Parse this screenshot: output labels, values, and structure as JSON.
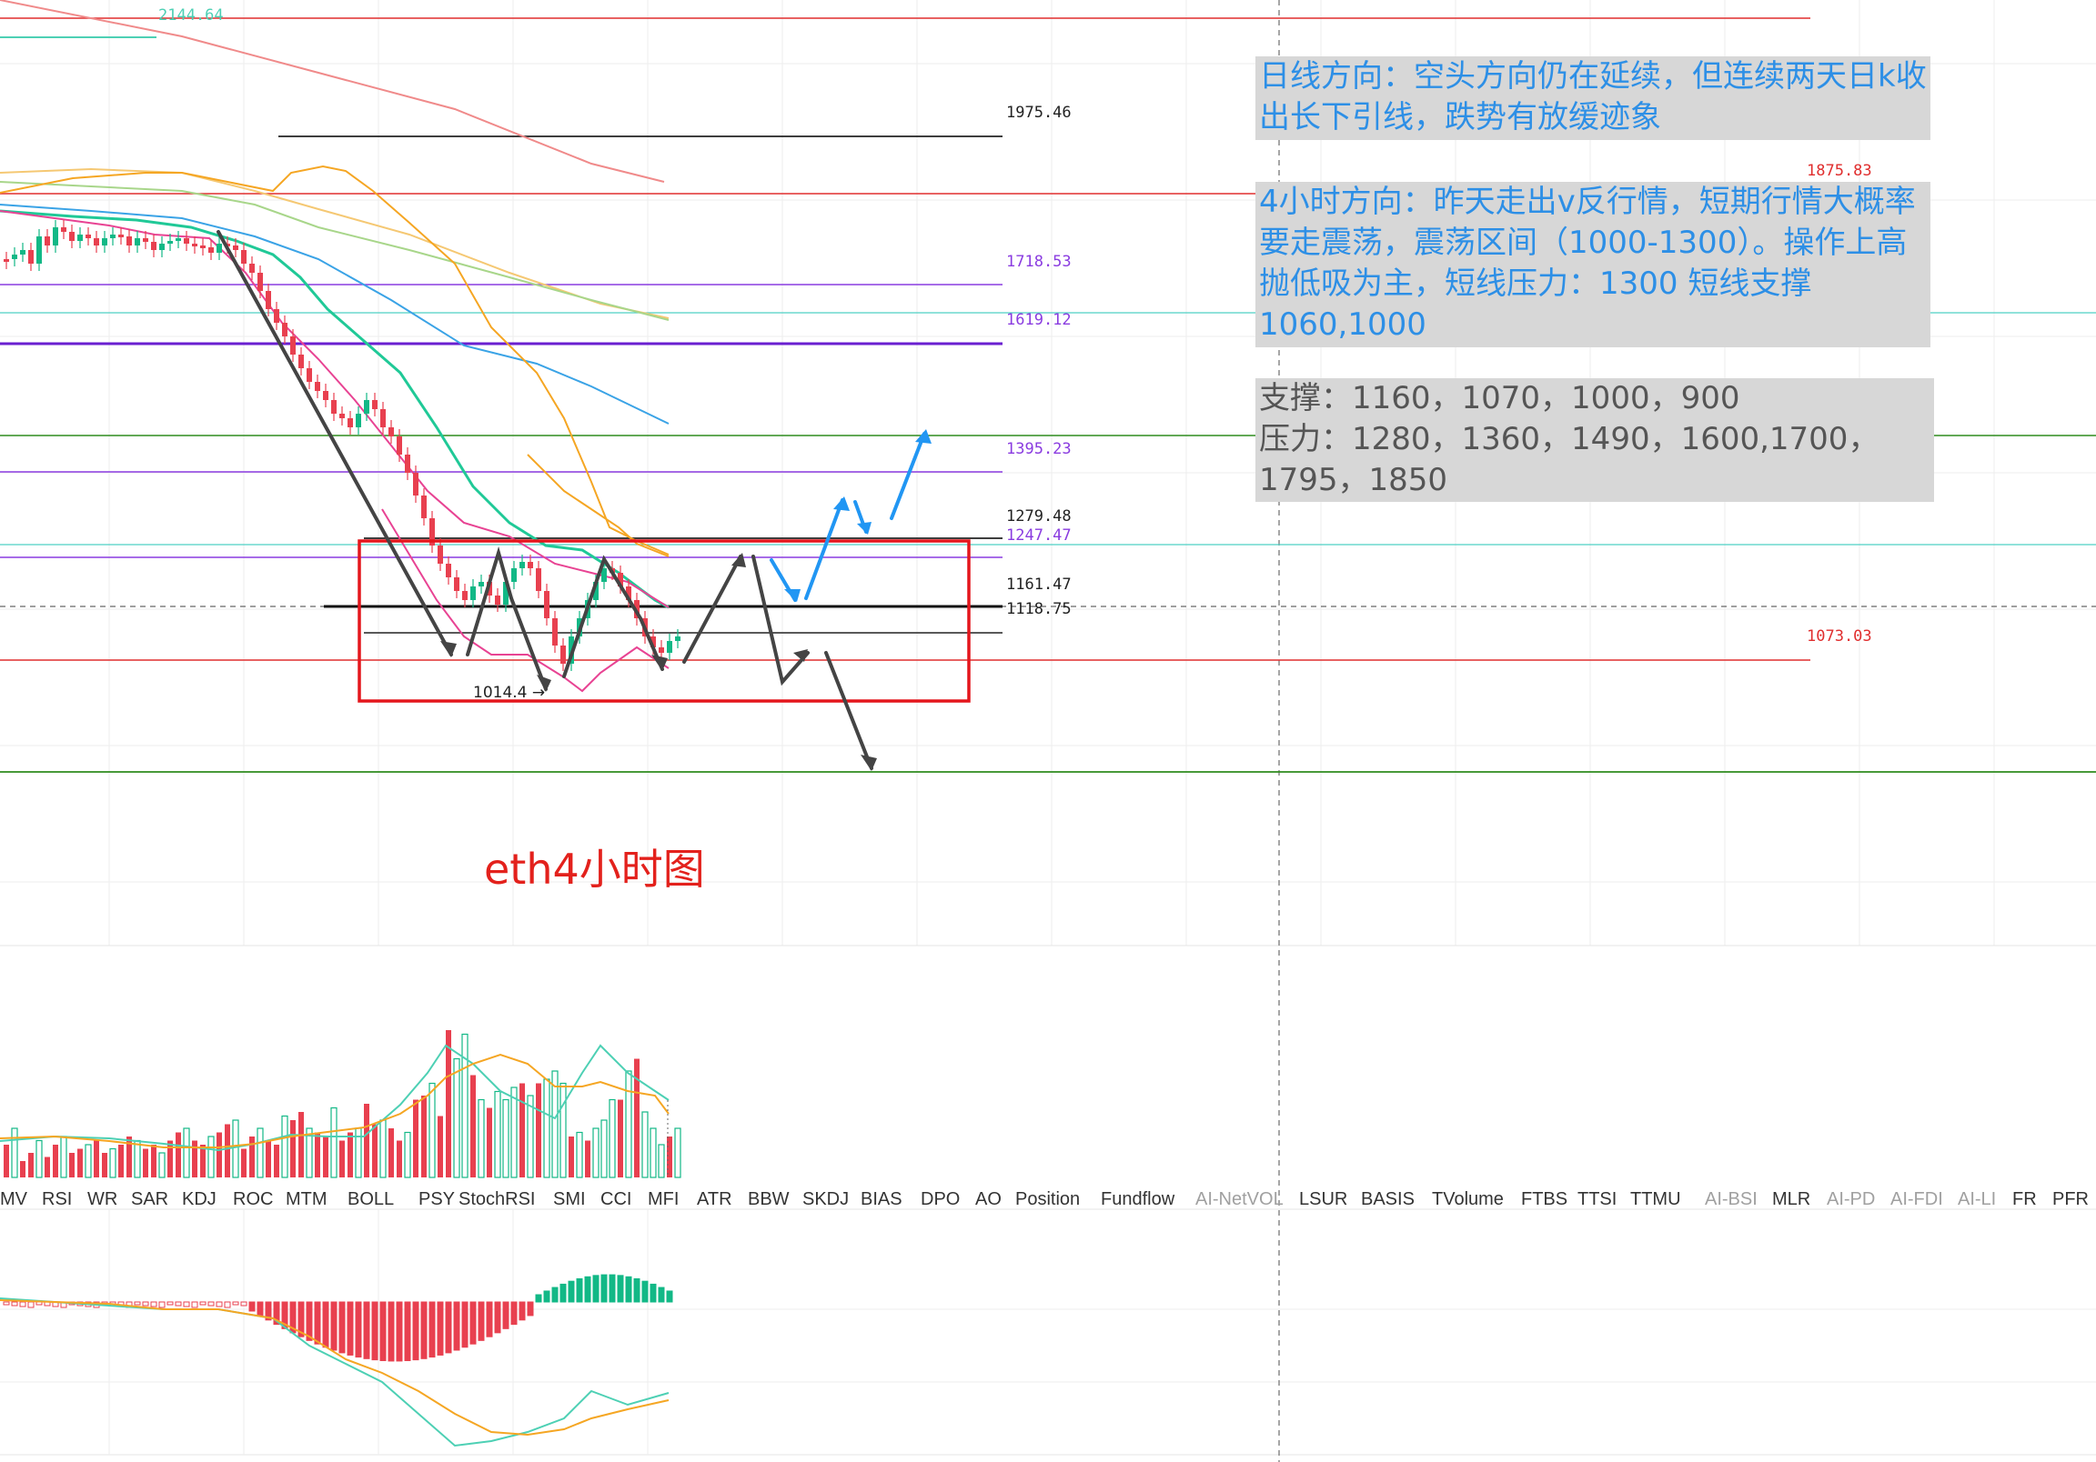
{
  "caption": "eth4小时图",
  "price_levels": [
    {
      "label": "2144.64",
      "color": "#4dd0b4"
    },
    {
      "label": "1975.46",
      "color": "#222222"
    },
    {
      "label": "1875.83",
      "color": "#e02e2e"
    },
    {
      "label": "1718.53",
      "color": "#8a3ce0"
    },
    {
      "label": "1619.12",
      "color": "#8a3ce0"
    },
    {
      "label": "1395.23",
      "color": "#8a3ce0"
    },
    {
      "label": "1279.48",
      "color": "#222222"
    },
    {
      "label": "1247.47",
      "color": "#8a3ce0"
    },
    {
      "label": "1161.47",
      "color": "#222222"
    },
    {
      "label": "1118.75",
      "color": "#222222"
    },
    {
      "label": "1073.03",
      "color": "#e02e2e"
    },
    {
      "label": "1014.4 →",
      "color": "#222222"
    }
  ],
  "annotations": {
    "daily": "日线方向：空头方向仍在延续，但连续两天日k收出长下引线，跌势有放缓迹象",
    "h4": "4小时方向：昨天走出v反行情，短期行情大概率要走震荡，震荡区间（1000-1300）。操作上高抛低吸为主，短线压力：1300  短线支撑1060,1000",
    "levels_support": "支撑：1160，1070，1000，900",
    "levels_resist": "压力：1280，1360，1490，1600,1700，1795，1850"
  },
  "indicator_tabs": [
    {
      "label": "MV",
      "dim": false
    },
    {
      "label": "RSI",
      "dim": false
    },
    {
      "label": "WR",
      "dim": false
    },
    {
      "label": "SAR",
      "dim": false
    },
    {
      "label": "KDJ",
      "dim": false
    },
    {
      "label": "ROC",
      "dim": false
    },
    {
      "label": "MTM",
      "dim": false
    },
    {
      "label": "BOLL",
      "dim": false
    },
    {
      "label": "PSY",
      "dim": false
    },
    {
      "label": "StochRSI",
      "dim": false
    },
    {
      "label": "SMI",
      "dim": false
    },
    {
      "label": "CCI",
      "dim": false
    },
    {
      "label": "MFI",
      "dim": false
    },
    {
      "label": "ATR",
      "dim": false
    },
    {
      "label": "BBW",
      "dim": false
    },
    {
      "label": "SKDJ",
      "dim": false
    },
    {
      "label": "BIAS",
      "dim": false
    },
    {
      "label": "DPO",
      "dim": false
    },
    {
      "label": "AO",
      "dim": false
    },
    {
      "label": "Position",
      "dim": false
    },
    {
      "label": "Fundflow",
      "dim": false
    },
    {
      "label": "AI-NetVOL",
      "dim": true
    },
    {
      "label": "LSUR",
      "dim": false
    },
    {
      "label": "BASIS",
      "dim": false
    },
    {
      "label": "TVolume",
      "dim": false
    },
    {
      "label": "FTBS",
      "dim": false
    },
    {
      "label": "TTSI",
      "dim": false
    },
    {
      "label": "TTMU",
      "dim": false
    },
    {
      "label": "AI-BSI",
      "dim": true
    },
    {
      "label": "MLR",
      "dim": false
    },
    {
      "label": "AI-PD",
      "dim": true
    },
    {
      "label": "AI-FDI",
      "dim": true
    },
    {
      "label": "AI-LI",
      "dim": true
    },
    {
      "label": "FR",
      "dim": false
    },
    {
      "label": "PFR",
      "dim": false
    }
  ],
  "colors": {
    "up": "#12b886",
    "down": "#e8404f",
    "range_box": "#e4161c",
    "arrow_dark": "#444444",
    "arrow_blue": "#2196f3"
  }
}
